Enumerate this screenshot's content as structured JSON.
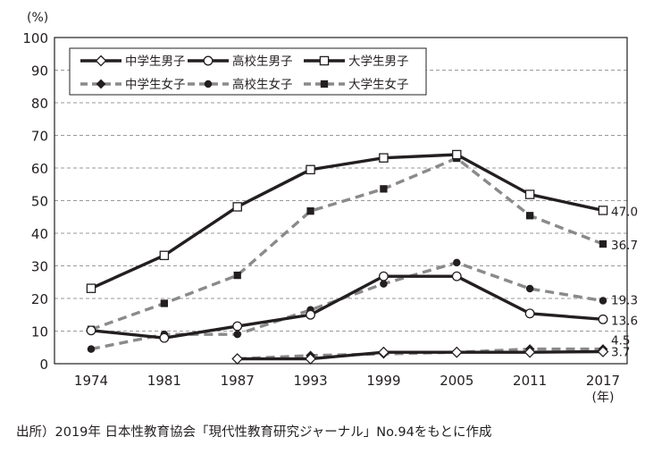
{
  "chart_data": {
    "type": "line",
    "y_unit": "(%)",
    "x_unit": "(年)",
    "x": [
      "1974",
      "1981",
      "1987",
      "1993",
      "1999",
      "2005",
      "2011",
      "2017"
    ],
    "ylim": [
      0,
      100
    ],
    "yticks": [
      "0",
      "10",
      "20",
      "30",
      "40",
      "50",
      "60",
      "70",
      "80",
      "90",
      "100"
    ],
    "grid": "horizontal dashed",
    "legend_position": "top-left",
    "series": [
      {
        "name": "中学生男子",
        "style": "solid",
        "marker": "diamond-open",
        "values": [
          null,
          null,
          1.5,
          1.5,
          3.5,
          3.5,
          3.5,
          3.7
        ]
      },
      {
        "name": "高校生男子",
        "style": "solid",
        "marker": "circle-open",
        "values": [
          10.2,
          7.9,
          11.5,
          15.0,
          26.8,
          26.8,
          15.4,
          13.6
        ]
      },
      {
        "name": "大学生男子",
        "style": "solid",
        "marker": "square-open",
        "values": [
          23.1,
          33.2,
          48.1,
          59.5,
          63.1,
          64.1,
          51.9,
          47.0
        ]
      },
      {
        "name": "中学生女子",
        "style": "dashed",
        "marker": "diamond-filled",
        "values": [
          null,
          null,
          1.5,
          2.5,
          3.0,
          3.5,
          4.5,
          4.5
        ]
      },
      {
        "name": "高校生女子",
        "style": "dashed",
        "marker": "circle-filled",
        "values": [
          4.5,
          9.0,
          9.0,
          16.5,
          24.5,
          31.0,
          23.0,
          19.3
        ]
      },
      {
        "name": "大学生女子",
        "style": "dashed",
        "marker": "square-filled",
        "values": [
          10.5,
          18.5,
          27.1,
          46.8,
          53.6,
          63.0,
          45.4,
          36.7
        ]
      }
    ],
    "end_labels": [
      "3.7",
      "13.6",
      "47.0",
      "4.5",
      "19.3",
      "36.7"
    ],
    "colors": {
      "male": "#231f20",
      "female": "#8a8a8a",
      "grid": "#9a9a9a",
      "axis": "#231f20"
    }
  },
  "source": "出所）2019年 日本性教育協会「現代性教育研究ジャーナル」No.94をもとに作成"
}
